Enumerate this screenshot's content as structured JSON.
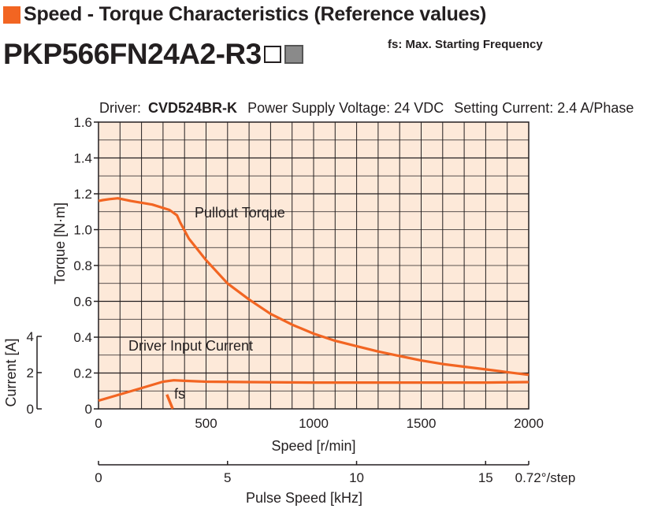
{
  "header": {
    "title": "Speed - Torque Characteristics (Reference values)",
    "model": "PKP566FN24A2-R3",
    "fs_note": "fs: Max. Starting Frequency"
  },
  "conditions": {
    "driver_label": "Driver:",
    "driver_model": "CVD524BR-K",
    "supply": "Power Supply Voltage: 24 VDC",
    "current": "Setting Current: 2.4 A/Phase"
  },
  "colors": {
    "accent": "#f26522",
    "grid_fill": "#fde9d9",
    "curve": "#f26522"
  },
  "chart_data": {
    "type": "line",
    "title": "",
    "xlabel": "Speed [r/min]",
    "ylabel": "Torque [N·m]",
    "y2label": "Current [A]",
    "x2label": "Pulse Speed [kHz]",
    "x2_unit": "0.72°/step",
    "xlim": [
      0,
      2000
    ],
    "ylim": [
      0,
      1.6
    ],
    "y2lim": [
      0,
      4
    ],
    "x2lim": [
      0,
      16.67
    ],
    "grid": true,
    "x_ticks": [
      "0",
      "500",
      "1000",
      "1500",
      "2000"
    ],
    "y_ticks": [
      "0",
      "0.2",
      "0.4",
      "0.6",
      "0.8",
      "1.0",
      "1.2",
      "1.4",
      "1.6"
    ],
    "y2_ticks": [
      "0",
      "2",
      "4"
    ],
    "x2_ticks": [
      "0",
      "5",
      "10",
      "15"
    ],
    "series": [
      {
        "name": "Pullout Torque",
        "x": [
          0,
          20,
          50,
          90,
          150,
          250,
          330,
          365,
          380,
          420,
          500,
          600,
          700,
          800,
          900,
          1000,
          1100,
          1200,
          1300,
          1400,
          1500,
          1600,
          1700,
          1800,
          1900,
          2000
        ],
        "y": [
          1.16,
          1.165,
          1.17,
          1.175,
          1.16,
          1.14,
          1.11,
          1.08,
          1.04,
          0.95,
          0.83,
          0.7,
          0.61,
          0.53,
          0.47,
          0.42,
          0.38,
          0.35,
          0.32,
          0.295,
          0.27,
          0.25,
          0.235,
          0.22,
          0.205,
          0.19
        ]
      },
      {
        "name": "Driver Input Current",
        "x": [
          0,
          100,
          200,
          300,
          350,
          400,
          500,
          700,
          1000,
          1500,
          1800,
          2000
        ],
        "y": [
          0.45,
          0.8,
          1.15,
          1.5,
          1.58,
          1.55,
          1.5,
          1.48,
          1.45,
          1.45,
          1.45,
          1.48
        ]
      },
      {
        "name": "fs",
        "x": [
          318,
          345
        ],
        "y": [
          0.08,
          0.0
        ]
      }
    ],
    "annotations": [
      "Pullout Torque",
      "Driver Input Current",
      "fs"
    ]
  }
}
